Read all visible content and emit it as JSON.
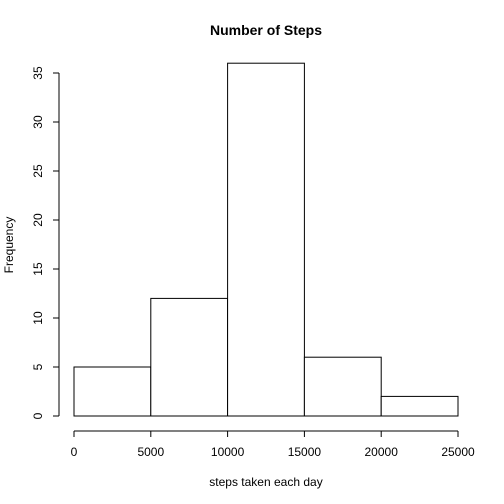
{
  "chart_data": {
    "type": "bar",
    "title": "Number of Steps",
    "xlabel": "steps taken each day",
    "ylabel": "Frequency",
    "bins": [
      {
        "start": 0,
        "end": 5000,
        "value": 5
      },
      {
        "start": 5000,
        "end": 10000,
        "value": 12
      },
      {
        "start": 10000,
        "end": 15000,
        "value": 36
      },
      {
        "start": 15000,
        "end": 20000,
        "value": 6
      },
      {
        "start": 20000,
        "end": 25000,
        "value": 2
      }
    ],
    "xlim": [
      0,
      25000
    ],
    "ylim": [
      0,
      35
    ],
    "x_ticks": [
      0,
      5000,
      10000,
      15000,
      20000,
      25000
    ],
    "y_ticks": [
      0,
      5,
      10,
      15,
      20,
      25,
      30,
      35
    ],
    "grid": false,
    "legend": "none"
  }
}
